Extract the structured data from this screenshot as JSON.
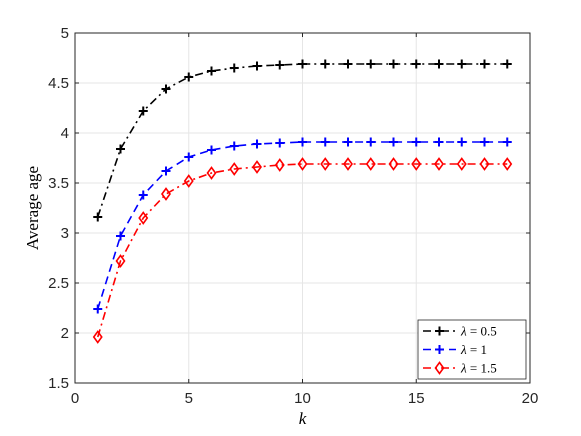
{
  "chart_data": {
    "type": "line",
    "title": "",
    "xlabel": "k",
    "ylabel": "Average age",
    "xlim": [
      0,
      20
    ],
    "ylim": [
      1.5,
      5
    ],
    "xticks": [
      0,
      5,
      10,
      15,
      20
    ],
    "yticks": [
      1.5,
      2,
      2.5,
      3,
      3.5,
      4,
      4.5,
      5
    ],
    "x_tick_labels": [
      "0",
      "5",
      "10",
      "15",
      "20"
    ],
    "y_tick_labels": [
      "1.5",
      "2",
      "2.5",
      "3",
      "3.5",
      "4",
      "4.5",
      "5"
    ],
    "grid": true,
    "legend_position": "bottom-right",
    "x": [
      1,
      2,
      3,
      4,
      5,
      6,
      7,
      8,
      9,
      10,
      11,
      12,
      13,
      14,
      15,
      16,
      17,
      18,
      19
    ],
    "series": [
      {
        "name": "λ = 0.5",
        "legend_parts": [
          "λ",
          " = 0.5"
        ],
        "color": "#000000",
        "line_style": "dashdot",
        "marker": "plus",
        "values": [
          3.16,
          3.84,
          4.22,
          4.44,
          4.56,
          4.62,
          4.65,
          4.67,
          4.68,
          4.69,
          4.69,
          4.69,
          4.69,
          4.69,
          4.69,
          4.69,
          4.69,
          4.69,
          4.69
        ]
      },
      {
        "name": "λ = 1",
        "legend_parts": [
          "λ",
          " = 1"
        ],
        "color": "#0000ff",
        "line_style": "dashed",
        "marker": "plus",
        "values": [
          2.24,
          2.97,
          3.38,
          3.62,
          3.76,
          3.83,
          3.87,
          3.89,
          3.9,
          3.91,
          3.91,
          3.91,
          3.91,
          3.91,
          3.91,
          3.91,
          3.91,
          3.91,
          3.91
        ]
      },
      {
        "name": "λ = 1.5",
        "legend_parts": [
          "λ",
          " = 1.5"
        ],
        "color": "#ff0000",
        "line_style": "dashdot",
        "marker": "diamond",
        "values": [
          1.96,
          2.72,
          3.15,
          3.39,
          3.52,
          3.6,
          3.64,
          3.66,
          3.68,
          3.69,
          3.69,
          3.69,
          3.69,
          3.69,
          3.69,
          3.69,
          3.69,
          3.69,
          3.69
        ]
      }
    ]
  }
}
